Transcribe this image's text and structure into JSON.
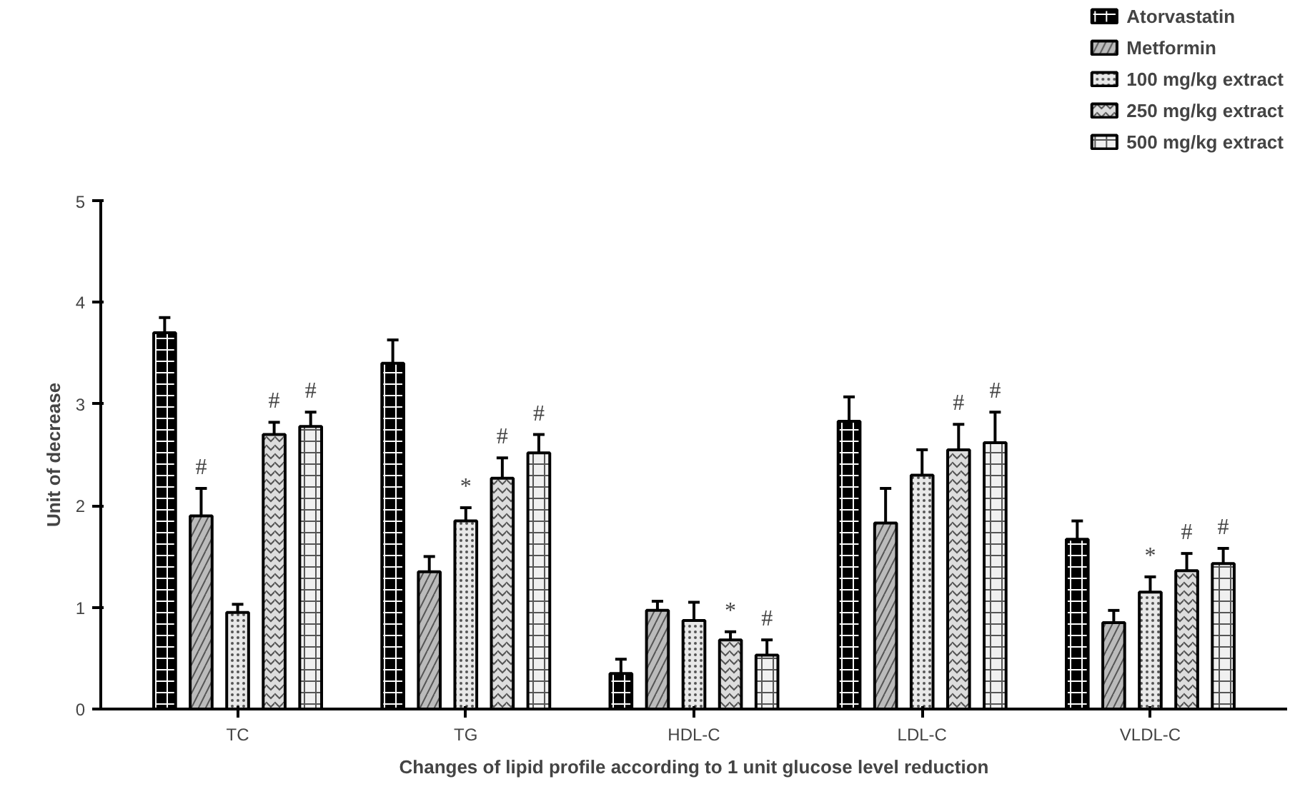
{
  "chart_data": {
    "type": "bar",
    "xlabel": "Changes of lipid profile according to 1 unit glucose level reduction",
    "ylabel": "Unit of decrease",
    "categories": [
      "TC",
      "TG",
      "HDL-C",
      "LDL-C",
      "VLDL-C"
    ],
    "ylim": [
      0,
      5
    ],
    "yticks": [
      0,
      1,
      2,
      3,
      4,
      5
    ],
    "grid": false,
    "legend": "top right",
    "series": [
      {
        "name": "Atorvastatin",
        "color": "#000000",
        "values": [
          3.7,
          3.4,
          0.35,
          2.83,
          1.67
        ],
        "errors": [
          0.15,
          0.23,
          0.14,
          0.24,
          0.18
        ],
        "value_labels": [
          null,
          null,
          null,
          null,
          null
        ]
      },
      {
        "name": "Metformin",
        "color": "#bbbbbb",
        "values": [
          1.9,
          1.35,
          0.97,
          1.83,
          0.85
        ],
        "errors": [
          0.27,
          0.15,
          0.09,
          0.34,
          0.12
        ],
        "value_labels": [
          "#",
          null,
          null,
          null,
          null
        ]
      },
      {
        "name": "100 mg/kg extract",
        "color": "#e8e8e8",
        "values": [
          0.95,
          1.85,
          0.87,
          2.3,
          1.15
        ],
        "errors": [
          0.08,
          0.13,
          0.18,
          0.25,
          0.15
        ],
        "value_labels": [
          null,
          "*",
          null,
          null,
          "*"
        ]
      },
      {
        "name": "250 mg/kg extract",
        "color": "#dddddd",
        "values": [
          2.7,
          2.27,
          0.68,
          2.55,
          1.36
        ],
        "errors": [
          0.12,
          0.2,
          0.08,
          0.25,
          0.17
        ],
        "value_labels": [
          "#",
          "#",
          "*",
          "#",
          "#"
        ]
      },
      {
        "name": "500 mg/kg extract",
        "color": "#f0f0f0",
        "values": [
          2.78,
          2.52,
          0.53,
          2.62,
          1.43
        ],
        "errors": [
          0.14,
          0.18,
          0.15,
          0.3,
          0.15
        ],
        "value_labels": [
          "#",
          "#",
          "#",
          "#",
          "#"
        ]
      }
    ]
  }
}
